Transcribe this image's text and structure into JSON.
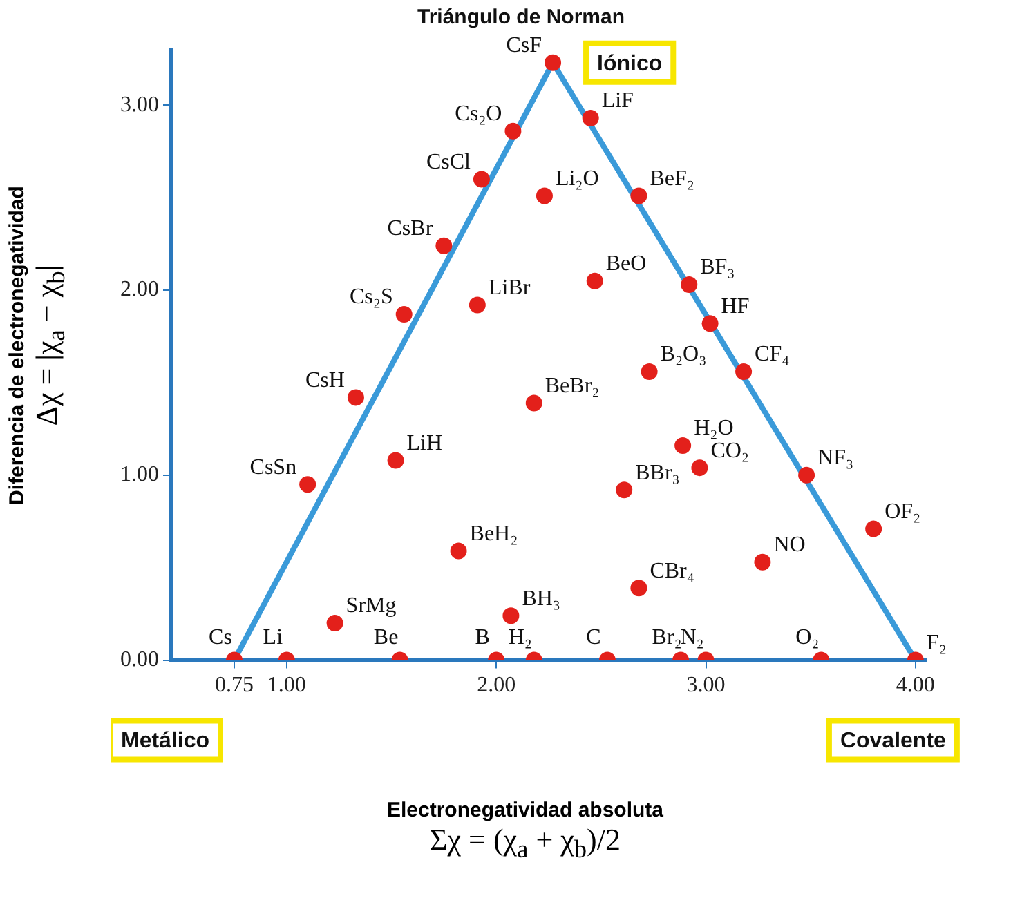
{
  "chart_data": {
    "type": "scatter",
    "title": "Triángulo de Norman",
    "xlabel": "Electronegatividad absoluta\nΣχ = (χ$_{a}$ + χ$_{b}$)/2",
    "ylabel": "Diferencia de electronegatividad\nΔχ = |χ$_{a}$ − χ$_{b}$|",
    "xlim": [
      0.45,
      4.05
    ],
    "ylim": [
      0,
      3.3
    ],
    "xticks": [
      {
        "value": 0.75,
        "label": "0.75"
      },
      {
        "value": 1,
        "label": "1.00"
      },
      {
        "value": 2,
        "label": "2.00"
      },
      {
        "value": 3,
        "label": "3.00"
      },
      {
        "value": 4,
        "label": "4.00"
      }
    ],
    "yticks": [
      {
        "value": 0,
        "label": "0.00"
      },
      {
        "value": 1,
        "label": "1.00"
      },
      {
        "value": 2,
        "label": "2.00"
      },
      {
        "value": 3,
        "label": "3.00"
      }
    ],
    "grid": false,
    "legend": false,
    "series": [
      {
        "type": "line",
        "color": "#3a9ad9",
        "x": [
          0.75,
          2.27,
          4.0
        ],
        "values": [
          0,
          3.23,
          0
        ]
      },
      {
        "color": "#e3201b",
        "marker": "circle",
        "x": [
          0.75,
          1.0,
          1.54,
          2.0,
          2.18,
          2.53,
          2.88,
          3.0,
          3.55,
          4.0,
          1.23,
          1.82,
          2.07,
          2.68,
          3.27,
          3.8,
          3.48,
          2.97,
          2.89,
          2.61,
          2.18,
          1.52,
          1.1,
          1.33,
          1.56,
          1.75,
          1.93,
          2.08,
          2.27,
          2.45,
          2.23,
          2.68,
          1.91,
          2.47,
          2.73,
          2.92,
          3.02,
          3.18
        ],
        "values": [
          0,
          0,
          0,
          0,
          0,
          0,
          0,
          0,
          0,
          0,
          0.2,
          0.59,
          0.24,
          0.39,
          0.53,
          0.71,
          1.0,
          1.04,
          1.16,
          0.92,
          1.39,
          1.08,
          0.95,
          1.42,
          1.87,
          2.24,
          2.6,
          2.86,
          3.23,
          2.93,
          2.51,
          2.51,
          1.92,
          2.05,
          1.56,
          2.03,
          1.82,
          1.56
        ]
      }
    ],
    "annotations": [
      {
        "text": "Cs",
        "x": 0.75,
        "y": 0
      },
      {
        "text": "Li",
        "x": 1.0,
        "y": 0
      },
      {
        "text": "Be",
        "x": 1.54,
        "y": 0
      },
      {
        "text": "B",
        "x": 2.0,
        "y": 0
      },
      {
        "text": "H₂",
        "x": 2.18,
        "y": 0
      },
      {
        "text": "C",
        "x": 2.53,
        "y": 0
      },
      {
        "text": "Br₂",
        "x": 2.88,
        "y": 0
      },
      {
        "text": "N₂",
        "x": 3.0,
        "y": 0
      },
      {
        "text": "O₂",
        "x": 3.55,
        "y": 0
      },
      {
        "text": "F₂",
        "x": 4.0,
        "y": 0
      },
      {
        "text": "SrMg",
        "x": 1.23,
        "y": 0.2
      },
      {
        "text": "BeH₂",
        "x": 1.82,
        "y": 0.59
      },
      {
        "text": "BH₃",
        "x": 2.07,
        "y": 0.24
      },
      {
        "text": "CBr₄",
        "x": 2.68,
        "y": 0.39
      },
      {
        "text": "NO",
        "x": 3.27,
        "y": 0.53
      },
      {
        "text": "OF₂",
        "x": 3.8,
        "y": 0.71
      },
      {
        "text": "NF₃",
        "x": 3.48,
        "y": 1.0
      },
      {
        "text": "CO₂",
        "x": 2.97,
        "y": 1.04
      },
      {
        "text": "H₂O",
        "x": 2.89,
        "y": 1.16
      },
      {
        "text": "BBr₃",
        "x": 2.61,
        "y": 0.92
      },
      {
        "text": "BeBr₂",
        "x": 2.18,
        "y": 1.39
      },
      {
        "text": "LiH",
        "x": 1.52,
        "y": 1.08
      },
      {
        "text": "CsSn",
        "x": 1.1,
        "y": 0.95
      },
      {
        "text": "CsH",
        "x": 1.33,
        "y": 1.42
      },
      {
        "text": "Cs₂S",
        "x": 1.56,
        "y": 1.87
      },
      {
        "text": "CsBr",
        "x": 1.75,
        "y": 2.24
      },
      {
        "text": "CsCl",
        "x": 1.93,
        "y": 2.6
      },
      {
        "text": "Cs₂O",
        "x": 2.08,
        "y": 2.86
      },
      {
        "text": "CsF",
        "x": 2.27,
        "y": 3.23
      },
      {
        "text": "LiF",
        "x": 2.45,
        "y": 2.93
      },
      {
        "text": "Li₂O",
        "x": 2.23,
        "y": 2.51
      },
      {
        "text": "BeF₂",
        "x": 2.68,
        "y": 2.51
      },
      {
        "text": "LiBr",
        "x": 1.91,
        "y": 1.92
      },
      {
        "text": "BeO",
        "x": 2.47,
        "y": 2.05
      },
      {
        "text": "B₂O₃",
        "x": 2.73,
        "y": 1.56
      },
      {
        "text": "BF₃",
        "x": 2.92,
        "y": 2.03
      },
      {
        "text": "HF",
        "x": 3.02,
        "y": 1.82
      },
      {
        "text": "CF₄",
        "x": 3.18,
        "y": 1.56
      },
      "Metálico",
      "Iónico",
      "Covalente"
    ]
  }
}
